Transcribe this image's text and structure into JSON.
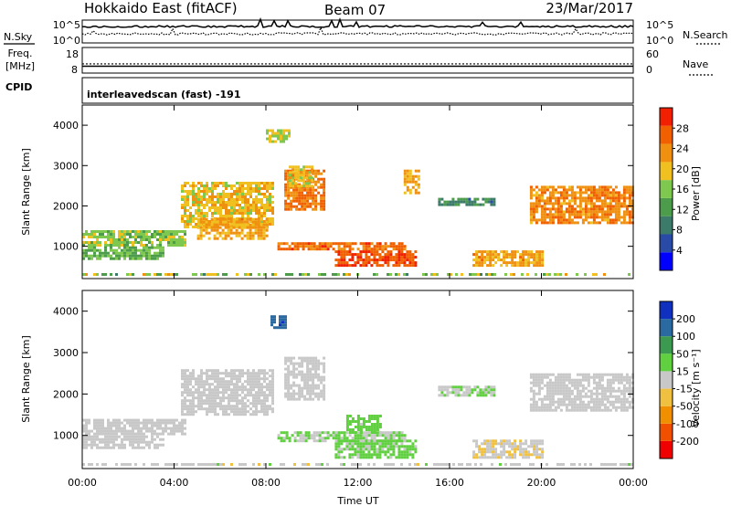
{
  "header": {
    "title": "Hokkaido East (fitACF)",
    "beam": "Beam 07",
    "date": "23/Mar/2017"
  },
  "noise_panel": {
    "left_label": "N.Sky",
    "right_label": "N.Search",
    "left_ticks": [
      "10^5",
      "10^0"
    ],
    "right_ticks": [
      "10^5",
      "10^0"
    ]
  },
  "freq_panel": {
    "left_label_1": "Freq.",
    "left_label_2": "[MHz]",
    "right_label": "Nave",
    "left_ticks": [
      "18",
      "8"
    ],
    "right_ticks": [
      "60",
      "0"
    ],
    "freq_value_mhz": 10.5,
    "nave_value": 22
  },
  "cpid": {
    "label": "CPID",
    "value": "interleavedscan (fast) -191"
  },
  "x_axis": {
    "title": "Time UT",
    "ticks": [
      "00:00",
      "04:00",
      "08:00",
      "12:00",
      "16:00",
      "20:00",
      "00:00"
    ],
    "range_hours": [
      0,
      24
    ]
  },
  "chart_data": [
    {
      "type": "heatmap",
      "xlabel": "Time UT",
      "ylabel": "Slant Range [km]",
      "ylim": [
        200,
        4500
      ],
      "yticks": [
        "1000",
        "2000",
        "3000",
        "4000"
      ],
      "xlim": [
        0,
        24
      ],
      "colorbar": {
        "label": "Power [dB]",
        "ticks": [
          "28",
          "24",
          "20",
          "16",
          "12",
          "8",
          "4"
        ],
        "range": [
          0,
          32
        ],
        "colors": [
          "#0000ff",
          "#2a4aa8",
          "#3c7a6a",
          "#4c9c4c",
          "#7ec850",
          "#f0c020",
          "#f09010",
          "#f06000",
          "#f02000"
        ]
      },
      "regions": [
        {
          "t0": 0.0,
          "t1": 4.5,
          "r0": 1050,
          "r1": 1400,
          "value": 16
        },
        {
          "t0": 0.0,
          "t1": 3.5,
          "r0": 700,
          "r1": 1000,
          "value": 14
        },
        {
          "t0": 4.3,
          "t1": 8.3,
          "r0": 1500,
          "r1": 2600,
          "value": 20
        },
        {
          "t0": 5.0,
          "t1": 8.0,
          "r0": 1200,
          "r1": 1700,
          "value": 22
        },
        {
          "t0": 8.8,
          "t1": 10.5,
          "r0": 1900,
          "r1": 2900,
          "value": 25
        },
        {
          "t0": 9.0,
          "t1": 10.0,
          "r0": 2500,
          "r1": 3000,
          "value": 20
        },
        {
          "t0": 8.5,
          "t1": 14.0,
          "r0": 900,
          "r1": 1100,
          "value": 26
        },
        {
          "t0": 11.0,
          "t1": 14.5,
          "r0": 500,
          "r1": 900,
          "value": 28
        },
        {
          "t0": 14.0,
          "t1": 14.6,
          "r0": 2300,
          "r1": 2900,
          "value": 22
        },
        {
          "t0": 15.5,
          "t1": 18.0,
          "r0": 2000,
          "r1": 2200,
          "value": 10
        },
        {
          "t0": 17.0,
          "t1": 20.0,
          "r0": 500,
          "r1": 900,
          "value": 22
        },
        {
          "t0": 19.5,
          "t1": 24.0,
          "r0": 1600,
          "r1": 2500,
          "value": 24
        },
        {
          "t0": 8.0,
          "t1": 9.0,
          "r0": 3600,
          "r1": 3900,
          "value": 18
        }
      ]
    },
    {
      "type": "heatmap",
      "xlabel": "Time UT",
      "ylabel": "Slant Range [km]",
      "ylim": [
        200,
        4500
      ],
      "yticks": [
        "1000",
        "2000",
        "3000",
        "4000"
      ],
      "xlim": [
        0,
        24
      ],
      "colorbar": {
        "label": "Velocity [m s⁻¹]",
        "ticks": [
          "200",
          "100",
          "50",
          "15",
          "-15",
          "-50",
          "-100",
          "-200"
        ],
        "range": [
          -250,
          250
        ],
        "colors": [
          "#f00000",
          "#f05000",
          "#f09000",
          "#f0c040",
          "#c8c8c8",
          "#60d040",
          "#3c9a50",
          "#2a6aa0",
          "#1030c0"
        ]
      },
      "regions": [
        {
          "t0": 0.0,
          "t1": 4.5,
          "r0": 1050,
          "r1": 1400,
          "value": 0
        },
        {
          "t0": 0.0,
          "t1": 3.5,
          "r0": 700,
          "r1": 1000,
          "value": -5
        },
        {
          "t0": 4.3,
          "t1": 8.3,
          "r0": 1500,
          "r1": 2600,
          "value": 0
        },
        {
          "t0": 8.8,
          "t1": 10.5,
          "r0": 1900,
          "r1": 2900,
          "value": 5
        },
        {
          "t0": 8.5,
          "t1": 14.0,
          "r0": 900,
          "r1": 1100,
          "value": 30
        },
        {
          "t0": 11.0,
          "t1": 14.5,
          "r0": 500,
          "r1": 900,
          "value": 40
        },
        {
          "t0": 11.5,
          "t1": 13.0,
          "r0": 1100,
          "r1": 1500,
          "value": 45
        },
        {
          "t0": 15.5,
          "t1": 18.0,
          "r0": 2000,
          "r1": 2200,
          "value": 25
        },
        {
          "t0": 17.0,
          "t1": 20.0,
          "r0": 500,
          "r1": 900,
          "value": -20
        },
        {
          "t0": 19.5,
          "t1": 24.0,
          "r0": 1600,
          "r1": 2500,
          "value": 5
        },
        {
          "t0": 8.2,
          "t1": 8.8,
          "r0": 3600,
          "r1": 3900,
          "value": 180
        }
      ]
    }
  ]
}
